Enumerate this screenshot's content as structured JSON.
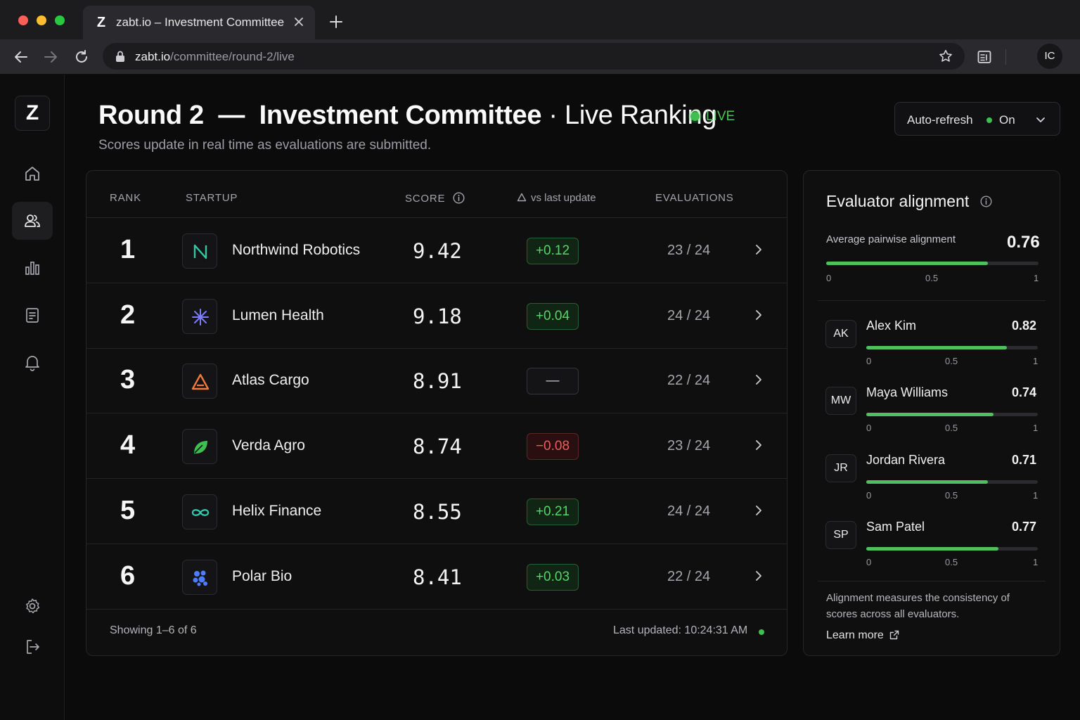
{
  "browser": {
    "tab_icon_letter": "Z",
    "tab_title": "zabt.io – Investment Committee",
    "url_host": "zabt.io",
    "url_path": "/committee/round-2/live",
    "profile_initials": "IC",
    "traffic_light_colors": [
      "#ff5f57",
      "#febc2e",
      "#28c840"
    ]
  },
  "sidebar": {
    "logo_letter": "Z",
    "items": [
      {
        "icon": "home-icon",
        "active": false
      },
      {
        "icon": "users-icon",
        "active": true
      },
      {
        "icon": "bar-chart-icon",
        "active": false
      },
      {
        "icon": "clipboard-icon",
        "active": false
      },
      {
        "icon": "bell-icon",
        "active": false
      }
    ],
    "bottom_items": [
      {
        "icon": "settings-icon"
      },
      {
        "icon": "logout-icon"
      }
    ]
  },
  "header": {
    "title_bold": "Round 2  —  Investment Committee",
    "title_light": " · Live Ranking",
    "live_label": "LIVE",
    "subtitle": "Scores update in real time as evaluations are submitted.",
    "auto_refresh_label": "Auto-refresh",
    "auto_refresh_value": "On"
  },
  "table": {
    "columns": {
      "rank": "RANK",
      "startup": "STARTUP",
      "score": "SCORE",
      "delta": "vs last update",
      "evaluations": "EVALUATIONS"
    },
    "rows": [
      {
        "rank": "1",
        "name": "Northwind Robotics",
        "logo": "northwind-logo-icon",
        "score": "9.42",
        "delta": "+0.12",
        "delta_type": "pos",
        "evals": "23 / 24"
      },
      {
        "rank": "2",
        "name": "Lumen Health",
        "logo": "lumen-logo-icon",
        "score": "9.18",
        "delta": "+0.04",
        "delta_type": "pos",
        "evals": "24 / 24"
      },
      {
        "rank": "3",
        "name": "Atlas Cargo",
        "logo": "atlas-logo-icon",
        "score": "8.91",
        "delta": "—",
        "delta_type": "neu",
        "evals": "22 / 24"
      },
      {
        "rank": "4",
        "name": "Verda Agro",
        "logo": "verda-logo-icon",
        "score": "8.74",
        "delta": "−0.08",
        "delta_type": "neg",
        "evals": "23 / 24"
      },
      {
        "rank": "5",
        "name": "Helix Finance",
        "logo": "helix-logo-icon",
        "score": "8.55",
        "delta": "+0.21",
        "delta_type": "pos",
        "evals": "24 / 24"
      },
      {
        "rank": "6",
        "name": "Polar Bio",
        "logo": "polar-logo-icon",
        "score": "8.41",
        "delta": "+0.03",
        "delta_type": "pos",
        "evals": "22 / 24"
      }
    ],
    "footer_showing": "Showing 1–6 of 6",
    "footer_updated": "Last updated: 10:24:31 AM"
  },
  "alignment": {
    "title": "Evaluator alignment",
    "average_label": "Average pairwise alignment",
    "average_value": "0.76",
    "average_fraction": 0.76,
    "scale": [
      "0",
      "0.5",
      "1"
    ],
    "evaluators": [
      {
        "initials": "AK",
        "name": "Alex Kim",
        "value": "0.82",
        "fraction": 0.82
      },
      {
        "initials": "MW",
        "name": "Maya Williams",
        "value": "0.74",
        "fraction": 0.74
      },
      {
        "initials": "JR",
        "name": "Jordan Rivera",
        "value": "0.71",
        "fraction": 0.71
      },
      {
        "initials": "SP",
        "name": "Sam Patel",
        "value": "0.77",
        "fraction": 0.77
      }
    ],
    "note": "Alignment measures the consistency of scores across all evaluators.",
    "learn_more": "Learn more"
  },
  "colors": {
    "accent_green": "#4fc05d",
    "negative_red": "#ef5d5d"
  }
}
